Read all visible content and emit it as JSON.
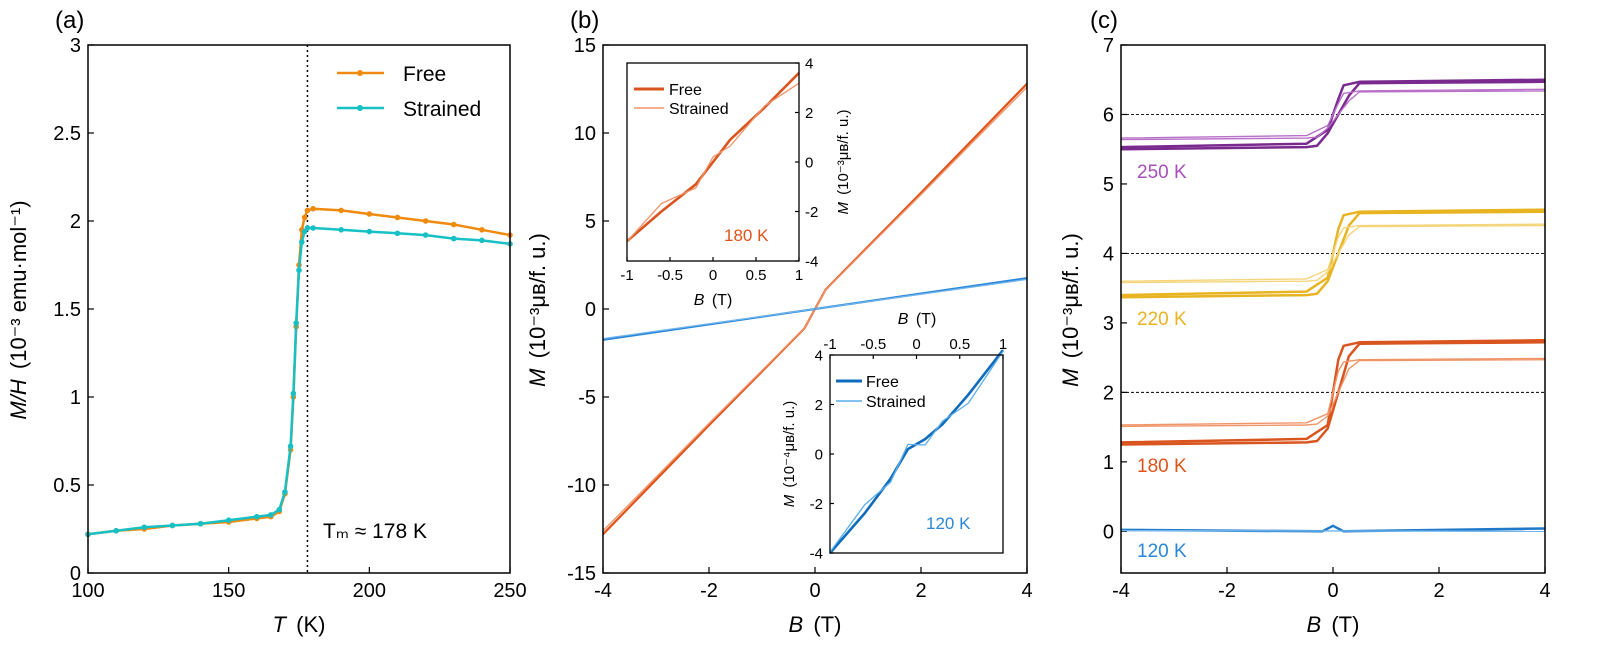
{
  "chart_data": [
    {
      "id": "a",
      "panel_label": "(a)",
      "type": "line",
      "xlabel": "T",
      "xunit": "(K)",
      "ylabel": "M/H",
      "yunit": "(10⁻³ emu·mol⁻¹)",
      "xlim": [
        100,
        250
      ],
      "ylim": [
        0,
        3
      ],
      "xticks": [
        100,
        150,
        200,
        250
      ],
      "yticks": [
        0,
        0.5,
        1,
        1.5,
        2,
        2.5,
        3
      ],
      "vline": 178,
      "annotation": "Tₘ ≈ 178 K",
      "legend_position": "top-right",
      "series": [
        {
          "name": "Free",
          "color": "#f08a0f",
          "x": [
            100,
            110,
            120,
            130,
            140,
            150,
            160,
            165,
            168,
            170,
            172,
            173,
            174,
            175,
            176,
            177,
            178,
            180,
            190,
            200,
            210,
            220,
            230,
            240,
            250
          ],
          "y": [
            0.22,
            0.24,
            0.25,
            0.27,
            0.28,
            0.29,
            0.31,
            0.32,
            0.35,
            0.45,
            0.7,
            1.0,
            1.4,
            1.75,
            1.95,
            2.02,
            2.06,
            2.07,
            2.06,
            2.04,
            2.02,
            2.0,
            1.98,
            1.95,
            1.92
          ]
        },
        {
          "name": "Strained",
          "color": "#16c0c4",
          "x": [
            100,
            110,
            120,
            130,
            140,
            150,
            160,
            165,
            168,
            170,
            172,
            173,
            174,
            175,
            176,
            177,
            178,
            180,
            190,
            200,
            210,
            220,
            230,
            240,
            250
          ],
          "y": [
            0.22,
            0.24,
            0.26,
            0.27,
            0.28,
            0.3,
            0.32,
            0.33,
            0.36,
            0.46,
            0.72,
            1.02,
            1.42,
            1.72,
            1.88,
            1.94,
            1.96,
            1.96,
            1.95,
            1.94,
            1.93,
            1.92,
            1.9,
            1.89,
            1.87
          ]
        }
      ]
    },
    {
      "id": "b",
      "panel_label": "(b)",
      "type": "line",
      "xlabel": "B",
      "xunit": "(T)",
      "ylabel": "M",
      "yunit": "(10⁻³μʙ/f. u.)",
      "xlim": [
        -4,
        4
      ],
      "ylim": [
        -15,
        15
      ],
      "xticks": [
        -4,
        -2,
        0,
        2,
        4
      ],
      "yticks": [
        -15,
        -10,
        -5,
        0,
        5,
        10,
        15
      ],
      "series": [
        {
          "name": "180 K",
          "color": "#e0541a",
          "x": [
            -4,
            -2,
            -0.2,
            0.2,
            2,
            4
          ],
          "y": [
            -12.8,
            -6.6,
            -1.1,
            1.1,
            6.6,
            12.8
          ]
        },
        {
          "name": "120 K",
          "color": "#2a86d8",
          "x": [
            -4,
            4
          ],
          "y": [
            -1.75,
            1.75
          ]
        }
      ],
      "insets": [
        {
          "id": "b1",
          "label": "180 K",
          "xlabel": "B",
          "xunit": "(T)",
          "ylabel": "M",
          "yunit": "(10⁻³μʙ/f. u.)",
          "xlim": [
            -1,
            1
          ],
          "ylim": [
            -4,
            4
          ],
          "xticks": [
            -1,
            -0.5,
            0,
            0.5,
            1
          ],
          "yticks": [
            -4,
            -2,
            0,
            2,
            4
          ],
          "legend": [
            "Free",
            "Strained"
          ],
          "colors": [
            "#d9541e",
            "#f0956a"
          ],
          "x": [
            -1,
            -0.6,
            -0.2,
            0,
            0.2,
            0.6,
            1
          ],
          "y": [
            -3.2,
            -2.0,
            -0.9,
            0,
            0.9,
            2.2,
            3.6
          ]
        },
        {
          "id": "b2",
          "label": "120 K",
          "xlabel": "B",
          "xunit": "(T)",
          "ylabel": "M",
          "yunit": "(10⁻⁴μʙ/f. u.)",
          "xlim": [
            -1,
            1
          ],
          "ylim": [
            -4,
            4
          ],
          "xticks": [
            -1,
            -0.5,
            0,
            0.5,
            1
          ],
          "yticks": [
            -4,
            -2,
            0,
            2,
            4
          ],
          "legend": [
            "Free",
            "Strained"
          ],
          "colors": [
            "#0f6cbd",
            "#5aaee8"
          ],
          "x": [
            -1,
            -0.6,
            -0.3,
            -0.1,
            0.1,
            0.3,
            0.6,
            1
          ],
          "y": [
            -4.0,
            -2.4,
            -1.0,
            0.2,
            0.6,
            1.2,
            2.4,
            4.2
          ]
        }
      ]
    },
    {
      "id": "c",
      "panel_label": "(c)",
      "type": "line",
      "xlabel": "B",
      "xunit": "(T)",
      "ylabel": "M",
      "yunit": "(10⁻³μʙ/f. u.)",
      "xlim": [
        -4,
        4
      ],
      "ylim": [
        -0.6,
        7
      ],
      "xticks": [
        -4,
        -2,
        0,
        2,
        4
      ],
      "yticks": [
        0,
        1,
        2,
        3,
        4,
        5,
        6,
        7
      ],
      "dashed_levels": [
        2,
        4,
        6
      ],
      "series": [
        {
          "name": "250 K",
          "color": "#7a2a8e",
          "color2": "#b870c8",
          "center": 6.0,
          "free_amp": 0.47,
          "strained_amp": 0.34
        },
        {
          "name": "220 K",
          "color": "#e8b422",
          "color2": "#f4d57a",
          "center": 4.0,
          "free_amp": 0.6,
          "strained_amp": 0.4
        },
        {
          "name": "180 K",
          "color": "#d9541e",
          "color2": "#f0956a",
          "center": 2.0,
          "free_amp": 0.72,
          "strained_amp": 0.47
        },
        {
          "name": "120 K",
          "color": "#1f78c8",
          "color2": "#70b4ec",
          "center": 0.02,
          "free_amp": 0.0,
          "strained_amp": 0.0
        }
      ]
    }
  ]
}
